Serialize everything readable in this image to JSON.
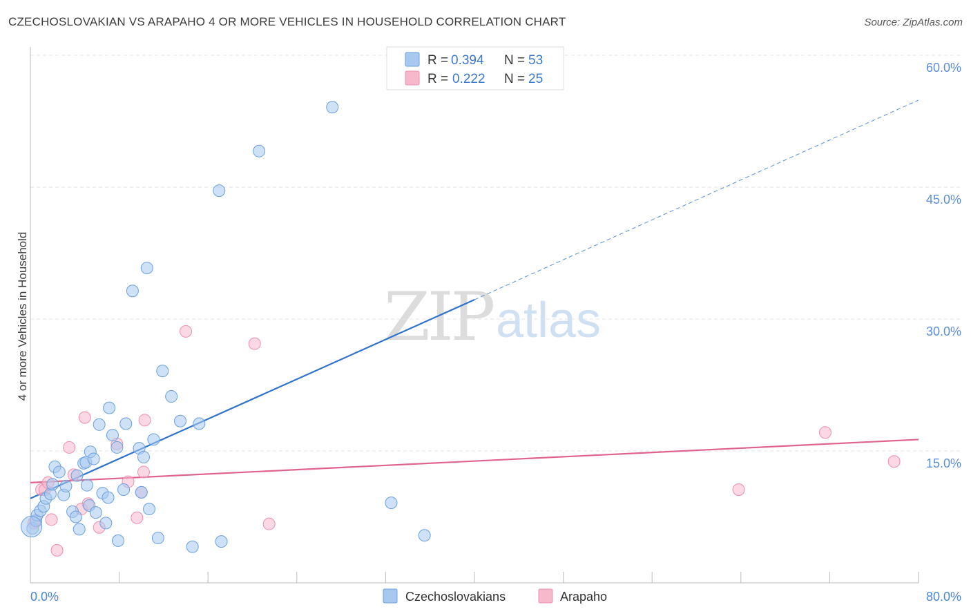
{
  "title": "CZECHOSLOVAKIAN VS ARAPAHO 4 OR MORE VEHICLES IN HOUSEHOLD CORRELATION CHART",
  "source": "Source: ZipAtlas.com",
  "watermark": {
    "zip": "ZIP",
    "atlas": "atlas"
  },
  "legend": {
    "rows": [
      {
        "r_label": "R =",
        "r_value": "0.394",
        "n_label": "N =",
        "n_value": "53"
      },
      {
        "r_label": "R =",
        "r_value": "0.222",
        "n_label": "N =",
        "n_value": "25"
      }
    ]
  },
  "bottom_legend": [
    "Czechoslovakians",
    "Arapaho"
  ],
  "colors": {
    "blue_fill": "#a8c8f0",
    "blue_stroke": "#6a9fe0",
    "blue_line": "#2f72d0",
    "pink_fill": "#f7b8cc",
    "pink_stroke": "#ee8fae",
    "pink_line": "#e0628e",
    "grid": "#e3e3e3",
    "axis": "#bbbbbb"
  },
  "chart_data": {
    "type": "scatter",
    "title": "CZECHOSLOVAKIAN VS ARAPAHO 4 OR MORE VEHICLES IN HOUSEHOLD CORRELATION CHART",
    "xlabel": "",
    "ylabel": "4 or more Vehicles in Household",
    "xlim": [
      0,
      80
    ],
    "ylim": [
      0,
      60
    ],
    "x_tick_labels": [
      "0.0%",
      "80.0%"
    ],
    "y_ticks": [
      15,
      30,
      45,
      60
    ],
    "y_tick_labels": [
      "15.0%",
      "30.0%",
      "45.0%",
      "60.0%"
    ],
    "grid": true,
    "legend_position": "top-center",
    "series": [
      {
        "name": "Czechoslovakians",
        "r": 0.394,
        "n": 53,
        "points": [
          [
            0.2,
            6.2
          ],
          [
            0.5,
            7.1
          ],
          [
            0.6,
            7.7
          ],
          [
            0.9,
            8.2
          ],
          [
            1.2,
            8.7
          ],
          [
            1.4,
            9.6
          ],
          [
            1.8,
            10.1
          ],
          [
            2.0,
            11.2
          ],
          [
            2.2,
            13.2
          ],
          [
            2.6,
            12.6
          ],
          [
            3.0,
            10.0
          ],
          [
            3.2,
            11.0
          ],
          [
            3.8,
            8.1
          ],
          [
            4.2,
            12.2
          ],
          [
            4.1,
            7.5
          ],
          [
            4.4,
            6.1
          ],
          [
            4.8,
            13.6
          ],
          [
            5.0,
            13.7
          ],
          [
            5.1,
            11.1
          ],
          [
            5.3,
            8.8
          ],
          [
            5.4,
            14.9
          ],
          [
            5.7,
            14.1
          ],
          [
            5.9,
            8.0
          ],
          [
            6.2,
            18.0
          ],
          [
            6.5,
            10.2
          ],
          [
            6.8,
            6.8
          ],
          [
            7.0,
            9.7
          ],
          [
            7.1,
            19.9
          ],
          [
            7.4,
            16.8
          ],
          [
            7.8,
            15.4
          ],
          [
            7.9,
            4.8
          ],
          [
            8.4,
            10.6
          ],
          [
            8.6,
            18.1
          ],
          [
            9.2,
            33.2
          ],
          [
            9.8,
            15.3
          ],
          [
            10.0,
            10.3
          ],
          [
            10.2,
            14.3
          ],
          [
            10.5,
            35.8
          ],
          [
            10.7,
            8.4
          ],
          [
            11.1,
            16.3
          ],
          [
            11.5,
            5.1
          ],
          [
            11.9,
            24.1
          ],
          [
            12.7,
            21.2
          ],
          [
            13.5,
            18.4
          ],
          [
            14.6,
            4.1
          ],
          [
            15.2,
            18.1
          ],
          [
            17.0,
            44.6
          ],
          [
            17.2,
            4.7
          ],
          [
            20.6,
            49.1
          ],
          [
            27.2,
            54.1
          ],
          [
            32.5,
            9.1
          ],
          [
            35.5,
            5.4
          ],
          [
            0.1,
            6.4
          ]
        ],
        "trendline": {
          "x": [
            0,
            40
          ],
          "y": [
            9.6,
            32.2
          ],
          "dashed_extension_to": [
            80,
            54.9
          ]
        }
      },
      {
        "name": "Arapaho",
        "r": 0.222,
        "n": 25,
        "points": [
          [
            0.3,
            6.8
          ],
          [
            0.5,
            7.0
          ],
          [
            1.0,
            10.6
          ],
          [
            1.3,
            10.6
          ],
          [
            1.6,
            11.4
          ],
          [
            1.9,
            7.2
          ],
          [
            2.4,
            3.7
          ],
          [
            3.5,
            15.4
          ],
          [
            3.9,
            12.3
          ],
          [
            4.6,
            8.4
          ],
          [
            4.9,
            18.8
          ],
          [
            5.2,
            9.0
          ],
          [
            6.2,
            6.3
          ],
          [
            7.8,
            15.8
          ],
          [
            8.8,
            11.5
          ],
          [
            9.6,
            7.4
          ],
          [
            10.0,
            10.3
          ],
          [
            10.2,
            12.6
          ],
          [
            10.3,
            18.5
          ],
          [
            14.0,
            28.6
          ],
          [
            20.2,
            27.2
          ],
          [
            21.5,
            6.7
          ],
          [
            63.8,
            10.6
          ],
          [
            71.6,
            17.1
          ],
          [
            77.8,
            13.8
          ]
        ],
        "trendline": {
          "x": [
            0,
            80
          ],
          "y": [
            11.4,
            16.3
          ]
        }
      }
    ]
  }
}
